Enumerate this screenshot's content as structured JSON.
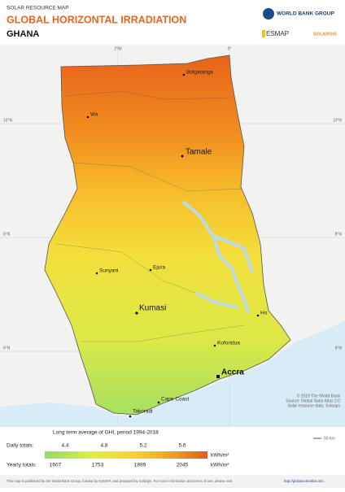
{
  "header": {
    "kicker": "SOLAR RESOURCE MAP",
    "title": "GLOBAL HORIZONTAL IRRADIATION",
    "country": "GHANA",
    "logos": [
      "WORLD BANK GROUP",
      "ESMAP",
      "SOLARGIS"
    ]
  },
  "map": {
    "graticule": [
      "2°W",
      "0°",
      "10°N",
      "8°N",
      "6°N"
    ],
    "cities": [
      "Bolgatanga",
      "Wa",
      "Tamale",
      "Sunyani",
      "Ejura",
      "Kumasi",
      "Ho",
      "Koforidua",
      "Accra",
      "Cape Coast",
      "Takoradi"
    ],
    "credit": [
      "© 2019 The World Bank",
      "Source: Global Solar Atlas 2.0",
      "Solar resource data: Solargis"
    ],
    "scale": "50 km"
  },
  "legend": {
    "title": "Long term average of GHI, period 1994-2018",
    "daily_label": "Daily totals:",
    "daily": [
      4.4,
      4.8,
      5.2,
      5.6
    ],
    "yearly_label": "Yearly totals:",
    "yearly": [
      1607,
      1753,
      1899,
      2045
    ],
    "unit": "kWh/m²"
  },
  "footer": {
    "text": "This map is published by the World Bank Group, funded by ESMAP, and prepared by Solargis. For more information and terms of use, please visit",
    "link": "http://globalsolaratlas.info."
  }
}
